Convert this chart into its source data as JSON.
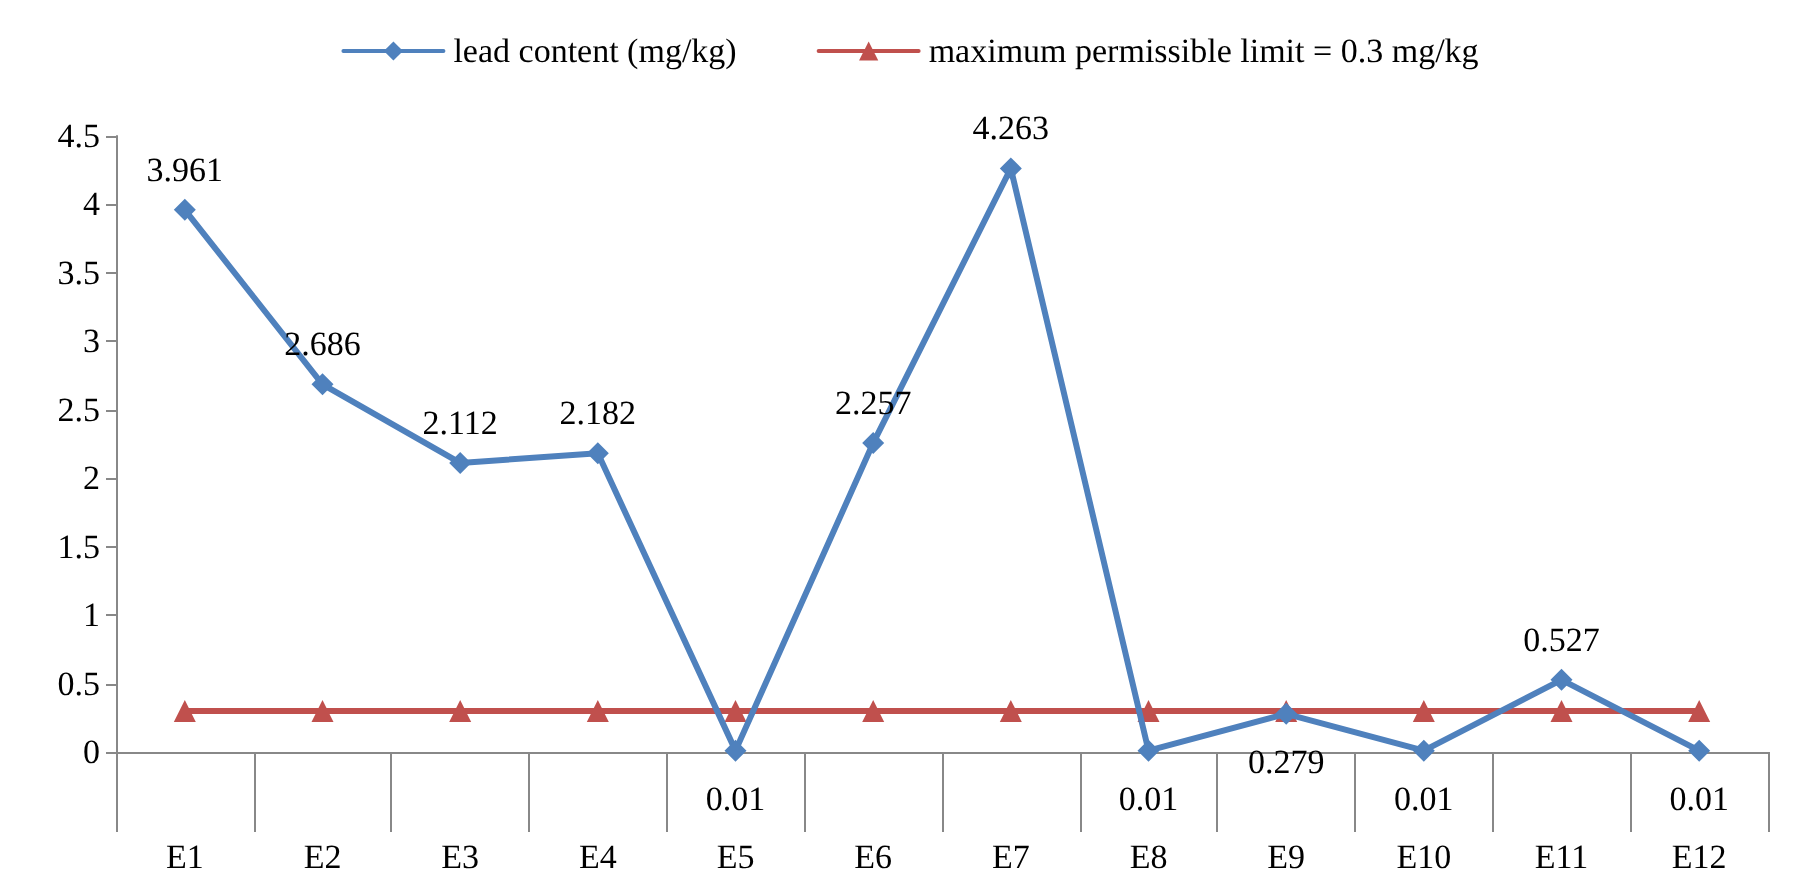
{
  "chart_data": {
    "type": "line",
    "categories": [
      "E1",
      "E2",
      "E3",
      "E4",
      "E5",
      "E6",
      "E7",
      "E8",
      "E9",
      "E10",
      "E11",
      "E12"
    ],
    "series": [
      {
        "name": "lead content (mg/kg)",
        "color": "#4f81bd",
        "marker": "diamond",
        "values": [
          3.961,
          2.686,
          2.112,
          2.182,
          0.01,
          2.257,
          4.263,
          0.01,
          0.279,
          0.01,
          0.527,
          0.01
        ],
        "value_labels": [
          "3.961",
          "2.686",
          "2.112",
          "2.182",
          "0.01",
          "2.257",
          "4.263",
          "0.01",
          "0.279",
          "0.01",
          "0.527",
          "0.01"
        ]
      },
      {
        "name": "maximum permissible limit = 0.3 mg/kg",
        "color": "#c0504d",
        "marker": "triangle",
        "values": [
          0.3,
          0.3,
          0.3,
          0.3,
          0.3,
          0.3,
          0.3,
          0.3,
          0.3,
          0.3,
          0.3,
          0.3
        ]
      }
    ],
    "ylim": [
      0,
      4.5
    ],
    "yticks": [
      0,
      0.5,
      1,
      1.5,
      2,
      2.5,
      3,
      3.5,
      4,
      4.5
    ],
    "grid": false,
    "legend": "top",
    "line_style": "solid"
  }
}
